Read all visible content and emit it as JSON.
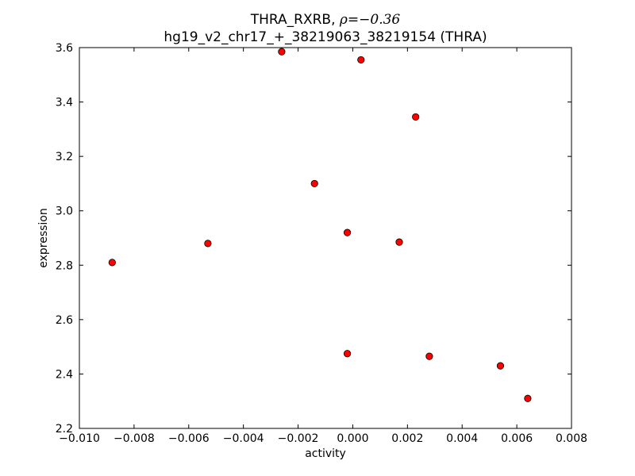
{
  "chart_data": {
    "type": "scatter",
    "title": {
      "line1_prefix": "THRA_RXRB, ",
      "line1_symbol": "ρ",
      "line1_value": "=−0.36",
      "line2": "hg19_v2_chr17_+_38219063_38219154 (THRA)"
    },
    "xlabel": "activity",
    "ylabel": "expression",
    "xlim": [
      -0.01,
      0.008
    ],
    "ylim": [
      2.2,
      3.6
    ],
    "xticks": [
      {
        "value": -0.01,
        "label": "−0.010"
      },
      {
        "value": -0.008,
        "label": "−0.008"
      },
      {
        "value": -0.006,
        "label": "−0.006"
      },
      {
        "value": -0.004,
        "label": "−0.004"
      },
      {
        "value": -0.002,
        "label": "−0.002"
      },
      {
        "value": 0.0,
        "label": "0.000"
      },
      {
        "value": 0.002,
        "label": "0.002"
      },
      {
        "value": 0.004,
        "label": "0.004"
      },
      {
        "value": 0.006,
        "label": "0.006"
      },
      {
        "value": 0.008,
        "label": "0.008"
      }
    ],
    "yticks": [
      {
        "value": 2.2,
        "label": "2.2"
      },
      {
        "value": 2.4,
        "label": "2.4"
      },
      {
        "value": 2.6,
        "label": "2.6"
      },
      {
        "value": 2.8,
        "label": "2.8"
      },
      {
        "value": 3.0,
        "label": "3.0"
      },
      {
        "value": 3.2,
        "label": "3.2"
      },
      {
        "value": 3.4,
        "label": "3.4"
      },
      {
        "value": 3.6,
        "label": "3.6"
      }
    ],
    "grid": false,
    "marker_color": "#ff0000",
    "marker_edge_color": "#000000",
    "points": [
      {
        "x": -0.0088,
        "y": 2.81
      },
      {
        "x": -0.0053,
        "y": 2.88
      },
      {
        "x": -0.0026,
        "y": 3.585
      },
      {
        "x": -0.0014,
        "y": 3.1
      },
      {
        "x": -0.0002,
        "y": 2.92
      },
      {
        "x": -0.0002,
        "y": 2.475
      },
      {
        "x": 0.0003,
        "y": 3.555
      },
      {
        "x": 0.0017,
        "y": 2.885
      },
      {
        "x": 0.0023,
        "y": 3.345
      },
      {
        "x": 0.0028,
        "y": 2.465
      },
      {
        "x": 0.0054,
        "y": 2.43
      },
      {
        "x": 0.0064,
        "y": 2.31
      }
    ]
  }
}
